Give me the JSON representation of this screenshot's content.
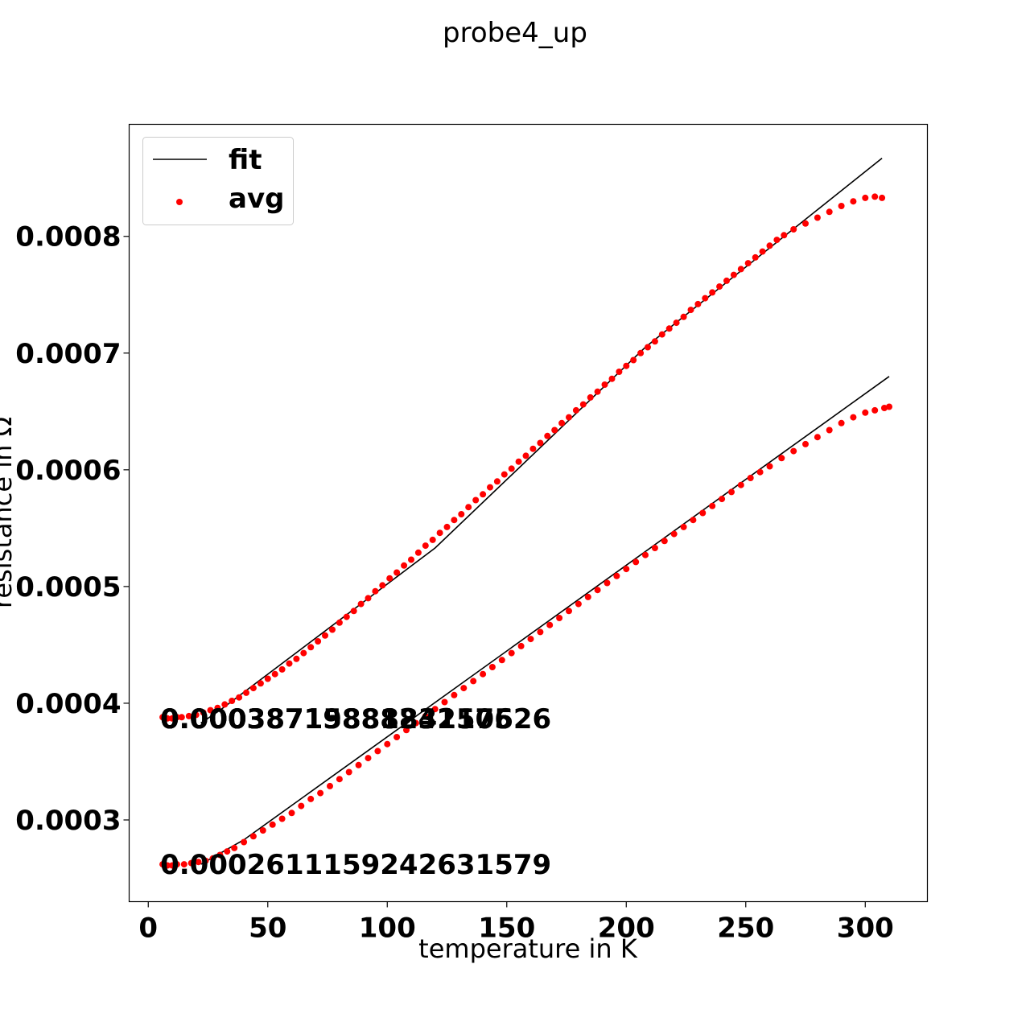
{
  "chart_data": {
    "type": "scatter",
    "title": "probe4_up",
    "xlabel": "temperature in K",
    "ylabel": "resistance in Ω",
    "xlim": [
      -8,
      326
    ],
    "ylim": [
      0.00023,
      0.000896
    ],
    "x_ticks": [
      0,
      50,
      100,
      150,
      200,
      250,
      300
    ],
    "x_tick_labels": [
      "0",
      "50",
      "100",
      "150",
      "200",
      "250",
      "300"
    ],
    "y_ticks": [
      0.0003,
      0.0004,
      0.0005,
      0.0006,
      0.0007,
      0.0008
    ],
    "y_tick_labels": [
      "0.0003",
      "0.0004",
      "0.0005",
      "0.0006",
      "0.0007",
      "0.0008"
    ],
    "grid": false,
    "legend": {
      "position": "top-left",
      "entries": [
        {
          "label": "fit",
          "marker": "line",
          "color": "#000000"
        },
        {
          "label": "avg",
          "marker": "dot",
          "color": "#ff0000"
        }
      ]
    },
    "annotations": [
      {
        "text": "0.00038719888242105",
        "x": 5,
        "y": 0.000387
      },
      {
        "text": "0.0003871588183157526",
        "x": 5,
        "y": 0.000387
      },
      {
        "text": "0.00038715888831576",
        "x": 5,
        "y": 0.000387
      },
      {
        "text": "0.000261115924263157​9",
        "x": 5,
        "y": 0.000262
      }
    ],
    "series": [
      {
        "name": "avg",
        "kind": "scatter",
        "color": "#ff0000",
        "points": [
          [
            6,
            0.000388
          ],
          [
            8,
            0.000387
          ],
          [
            10,
            0.000387
          ],
          [
            12,
            0.000388
          ],
          [
            14,
            0.000388
          ],
          [
            17,
            0.000389
          ],
          [
            20,
            0.00039
          ],
          [
            23,
            0.000392
          ],
          [
            26,
            0.000394
          ],
          [
            29,
            0.000396
          ],
          [
            32,
            0.000399
          ],
          [
            35,
            0.000402
          ],
          [
            38,
            0.000405
          ],
          [
            41,
            0.000409
          ],
          [
            44,
            0.000413
          ],
          [
            47,
            0.000417
          ],
          [
            50,
            0.000421
          ],
          [
            53,
            0.000425
          ],
          [
            56,
            0.000429
          ],
          [
            59,
            0.000434
          ],
          [
            62,
            0.000438
          ],
          [
            65,
            0.000443
          ],
          [
            68,
            0.000448
          ],
          [
            71,
            0.000453
          ],
          [
            74,
            0.000458
          ],
          [
            77,
            0.000463
          ],
          [
            80,
            0.000469
          ],
          [
            83,
            0.000474
          ],
          [
            86,
            0.000479
          ],
          [
            89,
            0.000485
          ],
          [
            92,
            0.00049
          ],
          [
            95,
            0.000496
          ],
          [
            98,
            0.000501
          ],
          [
            101,
            0.000507
          ],
          [
            104,
            0.000512
          ],
          [
            107,
            0.000518
          ],
          [
            110,
            0.000523
          ],
          [
            113,
            0.000529
          ],
          [
            116,
            0.000535
          ],
          [
            119,
            0.00054
          ],
          [
            122,
            0.000546
          ],
          [
            125,
            0.000551
          ],
          [
            128,
            0.000557
          ],
          [
            131,
            0.000562
          ],
          [
            134,
            0.000568
          ],
          [
            137,
            0.000574
          ],
          [
            140,
            0.000579
          ],
          [
            143,
            0.000585
          ],
          [
            146,
            0.00059
          ],
          [
            149,
            0.000596
          ],
          [
            152,
            0.000601
          ],
          [
            155,
            0.000607
          ],
          [
            158,
            0.000612
          ],
          [
            161,
            0.000618
          ],
          [
            164,
            0.000623
          ],
          [
            167,
            0.000629
          ],
          [
            170,
            0.000634
          ],
          [
            173,
            0.00064
          ],
          [
            176,
            0.000645
          ],
          [
            179,
            0.000651
          ],
          [
            182,
            0.000656
          ],
          [
            185,
            0.000662
          ],
          [
            188,
            0.000667
          ],
          [
            191,
            0.000673
          ],
          [
            194,
            0.000678
          ],
          [
            197,
            0.000684
          ],
          [
            200,
            0.000689
          ],
          [
            203,
            0.000694
          ],
          [
            206,
            0.0007
          ],
          [
            209,
            0.000705
          ],
          [
            212,
            0.00071
          ],
          [
            215,
            0.000716
          ],
          [
            218,
            0.000721
          ],
          [
            221,
            0.000726
          ],
          [
            224,
            0.000731
          ],
          [
            227,
            0.000737
          ],
          [
            230,
            0.000742
          ],
          [
            233,
            0.000747
          ],
          [
            236,
            0.000752
          ],
          [
            239,
            0.000757
          ],
          [
            242,
            0.000762
          ],
          [
            245,
            0.000767
          ],
          [
            248,
            0.000772
          ],
          [
            251,
            0.000777
          ],
          [
            254,
            0.000782
          ],
          [
            257,
            0.000787
          ],
          [
            260,
            0.000792
          ],
          [
            263,
            0.000797
          ],
          [
            266,
            0.000801
          ],
          [
            270,
            0.000806
          ],
          [
            275,
            0.000811
          ],
          [
            280,
            0.000816
          ],
          [
            285,
            0.000821
          ],
          [
            290,
            0.000826
          ],
          [
            295,
            0.00083
          ],
          [
            300,
            0.000833
          ],
          [
            304,
            0.000834
          ],
          [
            307,
            0.000833
          ]
        ]
      },
      {
        "name": "avg",
        "kind": "scatter",
        "color": "#ff0000",
        "points": [
          [
            6,
            0.000262
          ],
          [
            8,
            0.000261
          ],
          [
            10,
            0.000261
          ],
          [
            12,
            0.000262
          ],
          [
            15,
            0.000262
          ],
          [
            18,
            0.000263
          ],
          [
            21,
            0.000264
          ],
          [
            24,
            0.000265
          ],
          [
            27,
            0.000267
          ],
          [
            30,
            0.00027
          ],
          [
            33,
            0.000273
          ],
          [
            36,
            0.000276
          ],
          [
            40,
            0.000281
          ],
          [
            44,
            0.000286
          ],
          [
            48,
            0.000291
          ],
          [
            52,
            0.000296
          ],
          [
            56,
            0.000301
          ],
          [
            60,
            0.000306
          ],
          [
            64,
            0.000312
          ],
          [
            68,
            0.000318
          ],
          [
            72,
            0.000323
          ],
          [
            76,
            0.000329
          ],
          [
            80,
            0.000335
          ],
          [
            84,
            0.000341
          ],
          [
            88,
            0.000347
          ],
          [
            92,
            0.000353
          ],
          [
            96,
            0.000359
          ],
          [
            100,
            0.000365
          ],
          [
            104,
            0.000371
          ],
          [
            108,
            0.000377
          ],
          [
            112,
            0.000383
          ],
          [
            116,
            0.000389
          ],
          [
            120,
            0.000395
          ],
          [
            124,
            0.000401
          ],
          [
            128,
            0.000407
          ],
          [
            132,
            0.000413
          ],
          [
            136,
            0.000419
          ],
          [
            140,
            0.000425
          ],
          [
            144,
            0.000431
          ],
          [
            148,
            0.000437
          ],
          [
            152,
            0.000443
          ],
          [
            156,
            0.000449
          ],
          [
            160,
            0.000455
          ],
          [
            164,
            0.000461
          ],
          [
            168,
            0.000467
          ],
          [
            172,
            0.000473
          ],
          [
            176,
            0.000479
          ],
          [
            180,
            0.000485
          ],
          [
            184,
            0.000491
          ],
          [
            188,
            0.000497
          ],
          [
            192,
            0.000503
          ],
          [
            196,
            0.000509
          ],
          [
            200,
            0.000515
          ],
          [
            204,
            0.000521
          ],
          [
            208,
            0.000527
          ],
          [
            212,
            0.000533
          ],
          [
            216,
            0.000539
          ],
          [
            220,
            0.000545
          ],
          [
            224,
            0.000551
          ],
          [
            228,
            0.000557
          ],
          [
            232,
            0.000563
          ],
          [
            236,
            0.000569
          ],
          [
            240,
            0.000575
          ],
          [
            244,
            0.000581
          ],
          [
            248,
            0.000587
          ],
          [
            252,
            0.000593
          ],
          [
            256,
            0.000598
          ],
          [
            260,
            0.000603
          ],
          [
            265,
            0.00061
          ],
          [
            270,
            0.000616
          ],
          [
            275,
            0.000622
          ],
          [
            280,
            0.000628
          ],
          [
            285,
            0.000634
          ],
          [
            290,
            0.00064
          ],
          [
            295,
            0.000645
          ],
          [
            300,
            0.000649
          ],
          [
            304,
            0.000651
          ],
          [
            308,
            0.000653
          ],
          [
            310,
            0.000654
          ]
        ]
      },
      {
        "name": "fit",
        "kind": "line",
        "color": "#000000",
        "points": [
          [
            22,
            0.000383
          ],
          [
            30,
            0.000394
          ],
          [
            120,
            0.000533
          ],
          [
            208,
            0.000705
          ],
          [
            307,
            0.000867
          ]
        ]
      },
      {
        "name": "fit",
        "kind": "line",
        "color": "#000000",
        "points": [
          [
            22,
            0.000262
          ],
          [
            40,
            0.000283
          ],
          [
            310,
            0.00068
          ]
        ]
      }
    ]
  }
}
